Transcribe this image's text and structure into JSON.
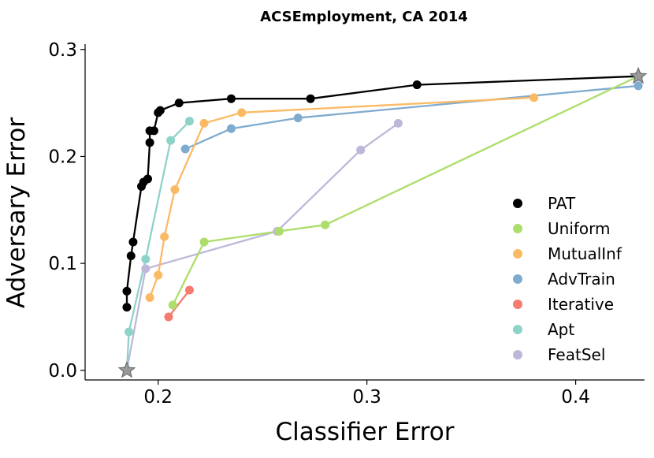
{
  "chart_data": {
    "type": "line",
    "title": "ACSEmployment, CA 2014",
    "xlabel": "Classifier Error",
    "ylabel": "Adversary Error",
    "xlim": [
      0.165,
      0.433
    ],
    "ylim": [
      -0.009,
      0.305
    ],
    "xticks": [
      {
        "v": 0.2,
        "label": "0.2"
      },
      {
        "v": 0.3,
        "label": "0.3"
      },
      {
        "v": 0.4,
        "label": "0.4"
      }
    ],
    "yticks": [
      {
        "v": 0.0,
        "label": "0.0"
      },
      {
        "v": 0.1,
        "label": "0.1"
      },
      {
        "v": 0.2,
        "label": "0.2"
      },
      {
        "v": 0.3,
        "label": "0.3"
      }
    ],
    "grid": false,
    "legend_position": "right",
    "stars": [
      {
        "x": 0.185,
        "y": 0.0,
        "color": "#999999"
      },
      {
        "x": 0.43,
        "y": 0.275,
        "color": "#999999"
      }
    ],
    "series": [
      {
        "name": "PAT",
        "color": "#000000",
        "points": [
          [
            0.185,
            0.059
          ],
          [
            0.185,
            0.074
          ],
          [
            0.187,
            0.107
          ],
          [
            0.188,
            0.12
          ],
          [
            0.192,
            0.172
          ],
          [
            0.193,
            0.176
          ],
          [
            0.195,
            0.179
          ],
          [
            0.196,
            0.213
          ],
          [
            0.196,
            0.224
          ],
          [
            0.198,
            0.224
          ],
          [
            0.2,
            0.241
          ],
          [
            0.201,
            0.243
          ],
          [
            0.21,
            0.25
          ],
          [
            0.235,
            0.254
          ],
          [
            0.273,
            0.254
          ],
          [
            0.324,
            0.267
          ],
          [
            0.43,
            0.275
          ]
        ]
      },
      {
        "name": "Uniform",
        "color": "#addd6a",
        "points": [
          [
            0.207,
            0.061
          ],
          [
            0.222,
            0.12
          ],
          [
            0.258,
            0.13
          ],
          [
            0.28,
            0.136
          ],
          [
            0.43,
            0.275
          ]
        ]
      },
      {
        "name": "MutualInf",
        "color": "#fcb964",
        "points": [
          [
            0.196,
            0.068
          ],
          [
            0.2,
            0.089
          ],
          [
            0.203,
            0.125
          ],
          [
            0.208,
            0.169
          ],
          [
            0.222,
            0.231
          ],
          [
            0.24,
            0.241
          ],
          [
            0.38,
            0.255
          ]
        ]
      },
      {
        "name": "AdvTrain",
        "color": "#7fabcf",
        "points": [
          [
            0.213,
            0.207
          ],
          [
            0.235,
            0.226
          ],
          [
            0.267,
            0.236
          ],
          [
            0.43,
            0.266
          ]
        ]
      },
      {
        "name": "Iterative",
        "color": "#f47b6e",
        "points": [
          [
            0.205,
            0.05
          ],
          [
            0.215,
            0.075
          ]
        ]
      },
      {
        "name": "Apt",
        "color": "#8dd3c7",
        "points": [
          [
            0.185,
            0.0
          ],
          [
            0.186,
            0.036
          ],
          [
            0.194,
            0.104
          ],
          [
            0.206,
            0.215
          ],
          [
            0.215,
            0.233
          ]
        ]
      },
      {
        "name": "FeatSel",
        "color": "#bdb8da",
        "points": [
          [
            0.185,
            0.0
          ],
          [
            0.194,
            0.095
          ],
          [
            0.257,
            0.13
          ],
          [
            0.297,
            0.206
          ],
          [
            0.315,
            0.231
          ]
        ]
      }
    ]
  }
}
